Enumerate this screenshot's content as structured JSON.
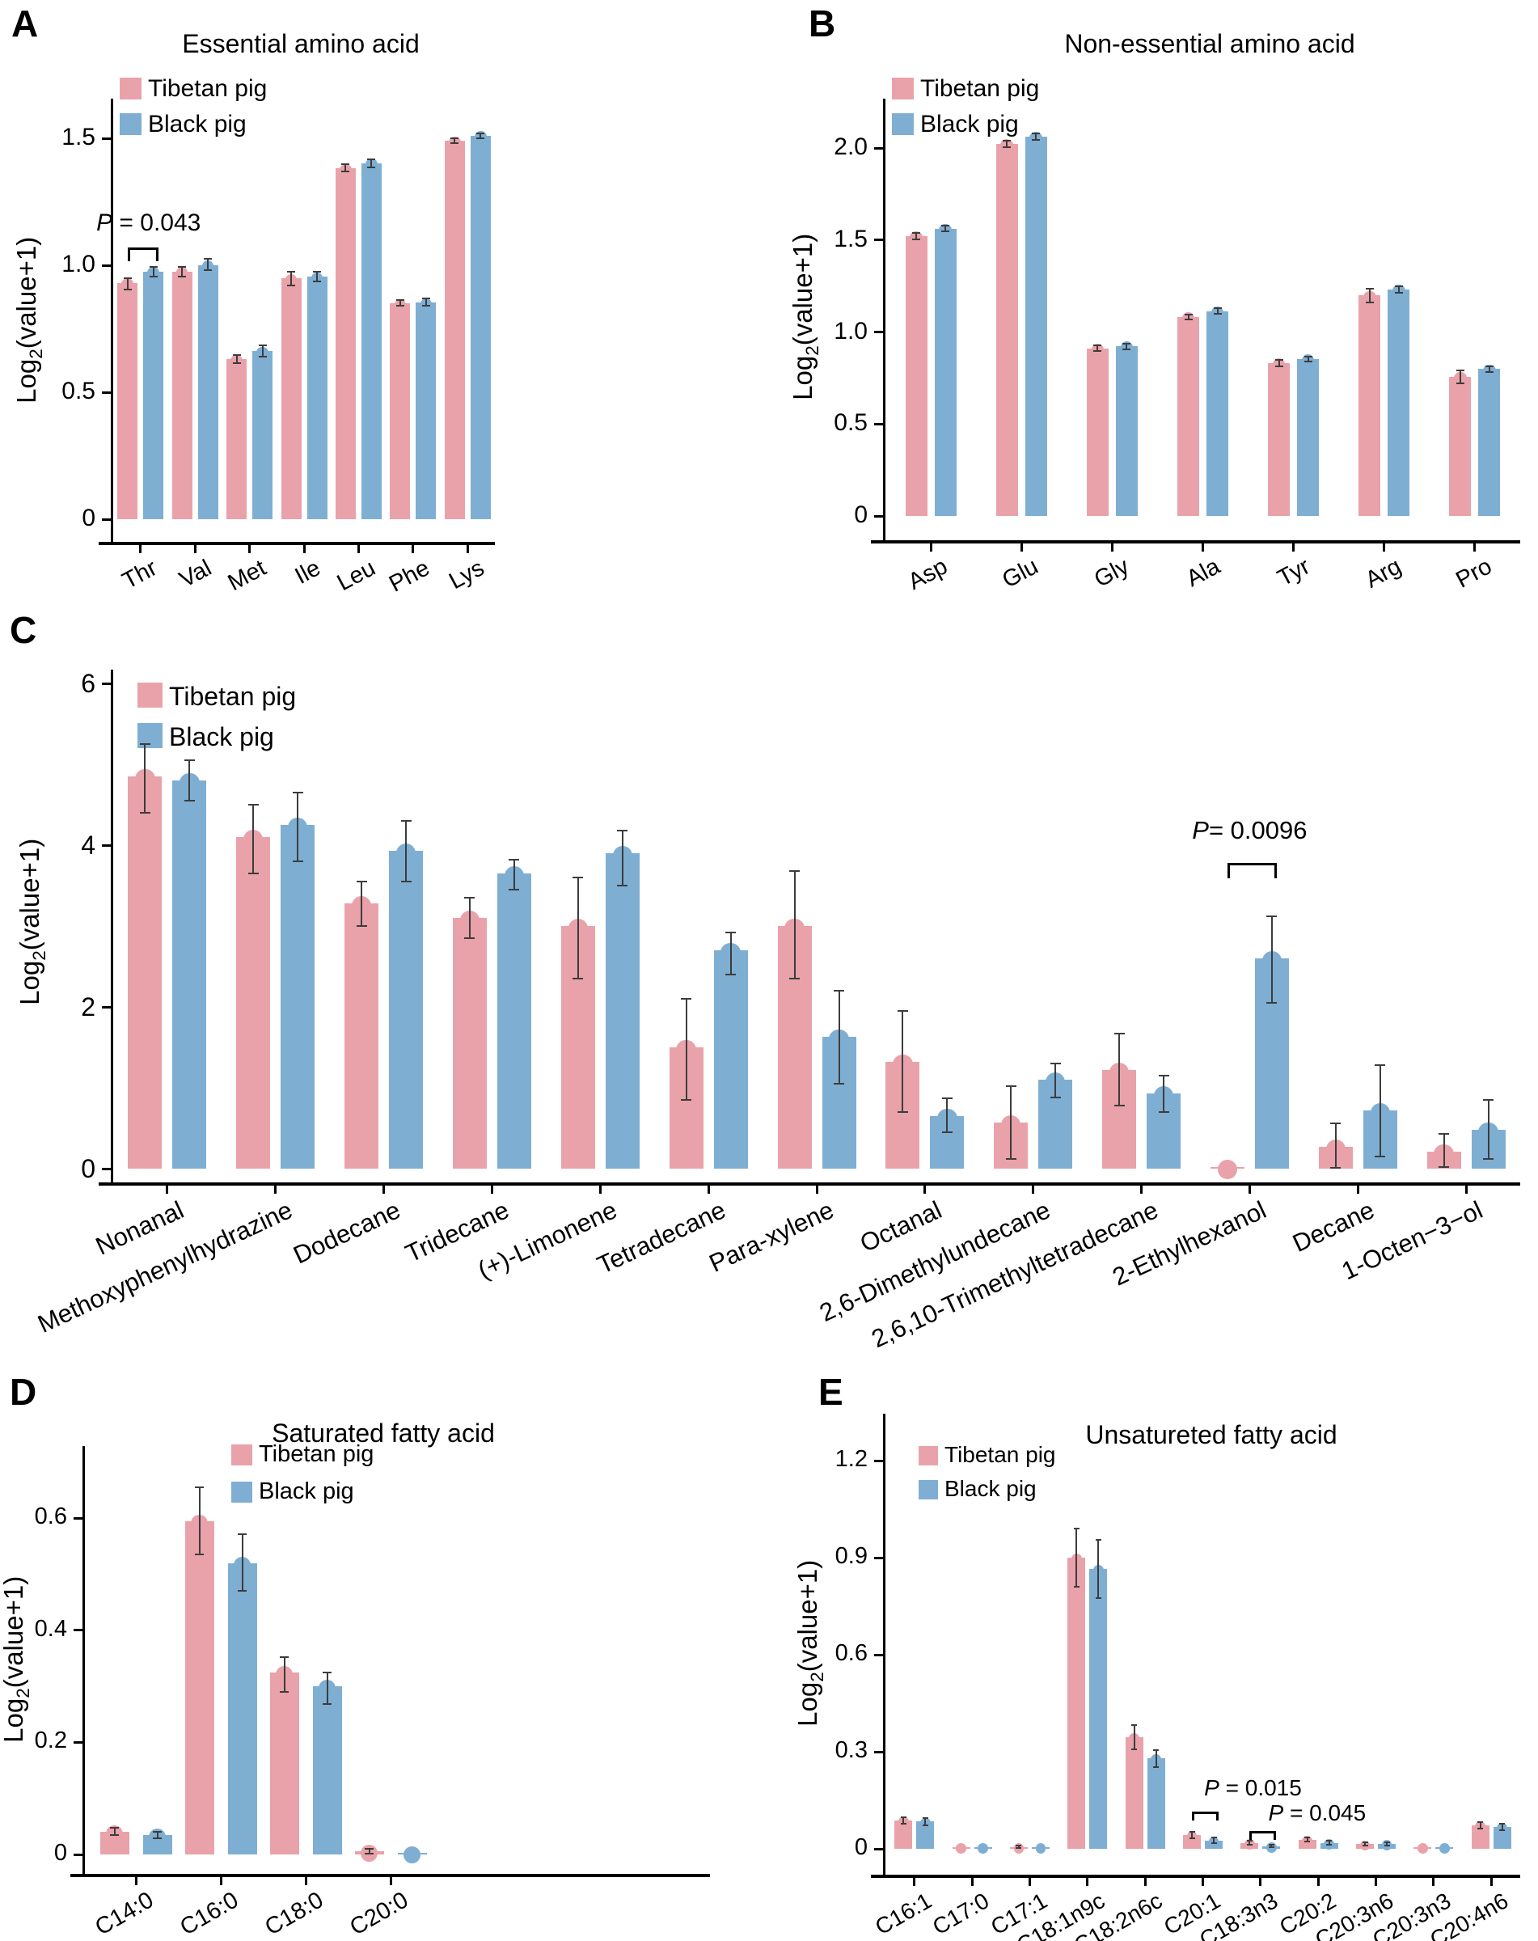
{
  "legend": {
    "tibetan": "Tibetan pig",
    "black": "Black pig"
  },
  "colors": {
    "tibetan": "#E9A2AA",
    "black": "#7FAED3",
    "error": "#3C3C3C",
    "axis": "#000000"
  },
  "ylabel": {
    "pre": "Log",
    "sub": "2",
    "post": "(value+1)"
  },
  "chart_data": [
    {
      "panel": "A",
      "type": "bar",
      "title": "Essential amino acid",
      "ylabel": "Log2(value+1)",
      "ylim": [
        0,
        1.66
      ],
      "grid": false,
      "legend_position": "top-left",
      "yticks": [
        0,
        0.5,
        1.0,
        1.5
      ],
      "ytick_labels": [
        "0",
        "0.5",
        "1.0",
        "1.5"
      ],
      "categories": [
        "Thr",
        "Val",
        "Met",
        "Ile",
        "Leu",
        "Phe",
        "Lys"
      ],
      "series": [
        {
          "key": "tibetan",
          "name": "Tibetan pig",
          "values": [
            0.93,
            0.975,
            0.63,
            0.948,
            1.382,
            0.85,
            1.49
          ],
          "err_low": [
            0.905,
            0.955,
            0.615,
            0.92,
            1.368,
            0.84,
            1.48
          ],
          "err_high": [
            0.95,
            0.995,
            0.648,
            0.975,
            1.398,
            0.862,
            1.5
          ]
        },
        {
          "key": "black",
          "name": "Black pig",
          "values": [
            0.975,
            1.0,
            0.662,
            0.955,
            1.402,
            0.853,
            1.51
          ],
          "err_low": [
            0.955,
            0.98,
            0.64,
            0.935,
            1.385,
            0.84,
            1.5
          ],
          "err_high": [
            0.995,
            1.025,
            0.685,
            0.975,
            1.418,
            0.868,
            1.52
          ]
        }
      ],
      "annotations": [
        {
          "category": "Thr",
          "p": "P",
          "rest": " = 0.043",
          "bracket_v": 1.07,
          "text_v": 1.22,
          "dx": 10
        }
      ]
    },
    {
      "panel": "B",
      "type": "bar",
      "title": "Non-essential amino acid",
      "ylabel": "Log2(value+1)",
      "ylim": [
        0,
        2.27
      ],
      "grid": false,
      "legend_position": "top-left",
      "yticks": [
        0,
        0.5,
        1.0,
        1.5,
        2.0
      ],
      "ytick_labels": [
        "0",
        "0.5",
        "1.0",
        "1.5",
        "2.0"
      ],
      "categories": [
        "Asp",
        "Glu",
        "Gly",
        "Ala",
        "Tyr",
        "Arg",
        "Pro"
      ],
      "series": [
        {
          "key": "tibetan",
          "name": "Tibetan pig",
          "values": [
            1.52,
            2.02,
            0.912,
            1.082,
            0.832,
            1.198,
            0.758
          ],
          "err_low": [
            1.505,
            2.005,
            0.897,
            1.07,
            0.815,
            1.162,
            0.722
          ],
          "err_high": [
            1.537,
            2.038,
            0.928,
            1.095,
            0.848,
            1.235,
            0.792
          ]
        },
        {
          "key": "black",
          "name": "Black pig",
          "values": [
            1.562,
            2.06,
            0.922,
            1.112,
            0.852,
            1.232,
            0.798
          ],
          "err_low": [
            1.548,
            2.042,
            0.907,
            1.098,
            0.838,
            1.215,
            0.782
          ],
          "err_high": [
            1.577,
            2.078,
            0.938,
            1.128,
            0.868,
            1.25,
            0.815
          ]
        }
      ],
      "annotations": []
    },
    {
      "panel": "C",
      "type": "bar",
      "title": null,
      "ylabel": "Log2(value+1)",
      "ylim": [
        0,
        6.2
      ],
      "grid": false,
      "legend_position": "top-left",
      "yticks": [
        0,
        2,
        4,
        6
      ],
      "ytick_labels": [
        "0",
        "2",
        "4",
        "6"
      ],
      "categories": [
        "Nonanal",
        "Methoxyphenylhydrazine",
        "Dodecane",
        "Tridecane",
        "(+)-Limonene",
        "Tetradecane",
        "Para-xylene",
        "Octanal",
        "2,6-Dimethylundecane",
        "2,6,10-Trimethyltetradecane",
        "2-Ethylhexanol",
        "Decane",
        "1-Octen−3−ol"
      ],
      "series": [
        {
          "key": "tibetan",
          "name": "Tibetan pig",
          "values": [
            4.85,
            4.1,
            3.28,
            3.1,
            3.0,
            1.5,
            3.0,
            1.32,
            0.57,
            1.22,
            0.01,
            0.27,
            0.21
          ],
          "err_low": [
            4.4,
            3.65,
            3.0,
            2.85,
            2.35,
            0.85,
            2.35,
            0.7,
            0.12,
            0.78,
            null,
            0.01,
            0.02
          ],
          "err_high": [
            5.25,
            4.5,
            3.55,
            3.35,
            3.6,
            2.1,
            3.68,
            1.95,
            1.02,
            1.67,
            null,
            0.56,
            0.43
          ]
        },
        {
          "key": "black",
          "name": "Black pig",
          "values": [
            4.8,
            4.25,
            3.93,
            3.65,
            3.9,
            2.7,
            1.63,
            0.65,
            1.1,
            0.93,
            2.6,
            0.72,
            0.48
          ],
          "err_low": [
            4.55,
            3.8,
            3.55,
            3.45,
            3.5,
            2.4,
            1.05,
            0.45,
            0.88,
            0.7,
            2.05,
            0.15,
            0.12
          ],
          "err_high": [
            5.05,
            4.65,
            4.3,
            3.82,
            4.18,
            2.92,
            2.2,
            0.87,
            1.3,
            1.15,
            3.12,
            1.28,
            0.85
          ]
        }
      ],
      "annotations": [
        {
          "category": "2-Ethylhexanol",
          "p": "P",
          "rest": "= 0.0096",
          "bracket_v": 3.78,
          "text_v": 4.35,
          "dx": 0
        }
      ]
    },
    {
      "panel": "D",
      "type": "bar",
      "title": "Saturated fatty acid",
      "ylabel": "Log2(value+1)",
      "ylim": [
        0,
        0.73
      ],
      "grid": false,
      "legend_position": "top-left",
      "yticks": [
        0,
        0.2,
        0.4,
        0.6
      ],
      "ytick_labels": [
        "0",
        "0.2",
        "0.4",
        "0.6"
      ],
      "categories": [
        "C14:0",
        "C16:0",
        "C18:0",
        "C20:0"
      ],
      "series": [
        {
          "key": "tibetan",
          "name": "Tibetan pig",
          "values": [
            0.04,
            0.595,
            0.325,
            0.006
          ],
          "err_low": [
            0.034,
            0.535,
            0.29,
            0.002
          ],
          "err_high": [
            0.047,
            0.655,
            0.352,
            0.01
          ]
        },
        {
          "key": "black",
          "name": "Black pig",
          "values": [
            0.035,
            0.52,
            0.3,
            0.002
          ],
          "err_low": [
            0.029,
            0.47,
            0.268,
            null
          ],
          "err_high": [
            0.041,
            0.572,
            0.325,
            null
          ]
        }
      ],
      "annotations": []
    },
    {
      "panel": "E",
      "type": "bar",
      "title": "Unsatureted fatty acid",
      "ylabel": "Log2(value+1)",
      "ylim": [
        0,
        1.34
      ],
      "grid": false,
      "legend_position": "top-left",
      "yticks": [
        0,
        0.3,
        0.6,
        0.9,
        1.2
      ],
      "ytick_labels": [
        "0",
        "0.3",
        "0.6",
        "0.9",
        "1.2"
      ],
      "categories": [
        "C16:1",
        "C17:0",
        "C17:1",
        "C18:1n9c",
        "C18:2n6c",
        "C20:1",
        "C18:3n3",
        "C20:2",
        "C20:3n6",
        "C20:3n3",
        "C20:4n6"
      ],
      "series": [
        {
          "key": "tibetan",
          "name": "Tibetan pig",
          "values": [
            0.088,
            0.004,
            0.006,
            0.9,
            0.345,
            0.042,
            0.018,
            0.028,
            0.014,
            0.004,
            0.072
          ],
          "err_low": [
            0.078,
            null,
            0.002,
            0.81,
            0.308,
            0.032,
            0.012,
            0.022,
            0.01,
            null,
            0.062
          ],
          "err_high": [
            0.098,
            null,
            0.01,
            0.99,
            0.382,
            0.052,
            0.025,
            0.035,
            0.019,
            null,
            0.082
          ]
        },
        {
          "key": "black",
          "name": "Black pig",
          "values": [
            0.084,
            0.004,
            0.004,
            0.865,
            0.28,
            0.026,
            0.008,
            0.018,
            0.016,
            0.004,
            0.068
          ],
          "err_low": [
            0.073,
            null,
            null,
            0.775,
            0.252,
            0.018,
            0.004,
            0.013,
            0.011,
            null,
            0.058
          ],
          "err_high": [
            0.094,
            null,
            null,
            0.955,
            0.305,
            0.034,
            0.012,
            0.024,
            0.021,
            null,
            0.078
          ]
        }
      ],
      "annotations": [
        {
          "category": "C20:1",
          "p": "P",
          "rest": " = 0.015",
          "bracket_v": 0.115,
          "text_v": 0.225,
          "dx": 62
        },
        {
          "category": "C18:3n3",
          "p": "P",
          "rest": " = 0.045",
          "bracket_v": 0.055,
          "text_v": 0.148,
          "dx": 70
        }
      ]
    }
  ]
}
